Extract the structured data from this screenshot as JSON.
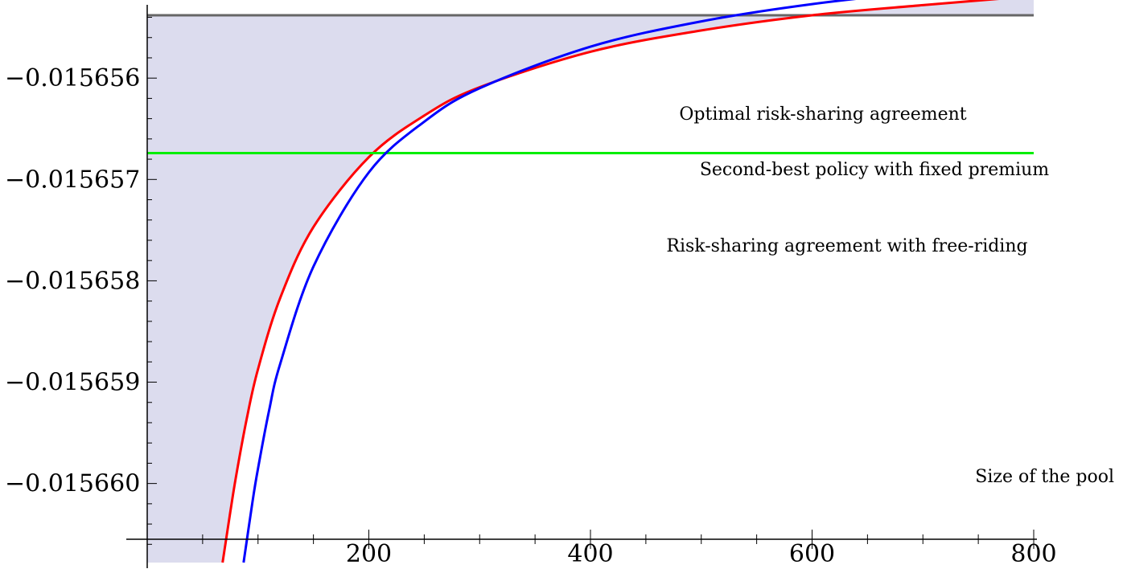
{
  "chart_data": {
    "type": "line",
    "title": "",
    "xlabel": "Size of the pool",
    "ylabel": "",
    "xlim": [
      0,
      800
    ],
    "ylim": [
      -0.01566078,
      -0.01565538
    ],
    "x_ticks": [
      200,
      400,
      600,
      800
    ],
    "x_tick_labels": [
      "200",
      "400",
      "600",
      "800"
    ],
    "y_ticks": [
      -0.015656,
      -0.015657,
      -0.015658,
      -0.015659,
      -0.01566
    ],
    "y_tick_labels": [
      "−0.015656",
      "−0.015657",
      "−0.015658",
      "−0.015659",
      "−0.015660"
    ],
    "x_axis_at_y": -0.01566055,
    "grid": false,
    "legend": "none",
    "series": [
      {
        "name": "Optimal risk-sharing agreement",
        "color": "#ff0000",
        "kind": "curve",
        "x": [
          68,
          75,
          80,
          90,
          100,
          120,
          150,
          200,
          250,
          300,
          400,
          500,
          600,
          700,
          800
        ],
        "y": [
          -0.01566078,
          -0.01566028,
          -0.01565994,
          -0.01565935,
          -0.01565887,
          -0.01565817,
          -0.01565747,
          -0.01565678,
          -0.01565637,
          -0.01565609,
          -0.01565574,
          -0.01565553,
          -0.01565538,
          -0.01565528,
          -0.01565519
        ]
      },
      {
        "name": "Second-best policy with fixed premium",
        "color": "#00ee00",
        "kind": "hline",
        "x": [
          0,
          800
        ],
        "y": [
          -0.01565674,
          -0.01565674
        ]
      },
      {
        "name": "Risk-sharing agreement with free-riding",
        "color": "#0000ff",
        "kind": "curve",
        "x": [
          87,
          95,
          100,
          110,
          120,
          150,
          200,
          250,
          300,
          400,
          500,
          600,
          700,
          800
        ],
        "y": [
          -0.01566078,
          -0.01566018,
          -0.01565985,
          -0.01565928,
          -0.01565882,
          -0.01565786,
          -0.01565693,
          -0.01565643,
          -0.0156561,
          -0.01565569,
          -0.01565544,
          -0.01565527,
          -0.01565515,
          -0.01565506
        ]
      }
    ],
    "shaded_region": {
      "color": "#dcdcee",
      "description": "area between the red curve and the upper boundary line",
      "upper_y": -0.01565538
    },
    "upper_line": {
      "y": -0.01565538,
      "color": "#666666"
    },
    "annotations": [
      "Optimal risk-sharing agreement",
      "Second-best policy with fixed premium",
      "Risk-sharing agreement with free-riding"
    ]
  }
}
